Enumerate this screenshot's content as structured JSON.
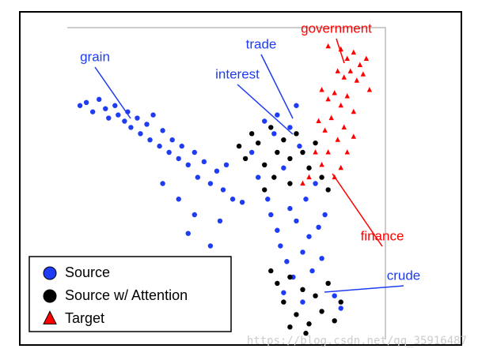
{
  "chart_data": {
    "type": "scatter",
    "xlim": [
      0,
      100
    ],
    "ylim": [
      0,
      100
    ],
    "series": [
      {
        "name": "Source",
        "color": "#1f3cf5",
        "marker": "circle",
        "x": [
          4,
          6,
          8,
          10,
          12,
          13,
          15,
          16,
          18,
          19,
          20,
          22,
          23,
          25,
          26,
          27,
          29,
          30,
          32,
          33,
          35,
          36,
          38,
          40,
          41,
          43,
          45,
          47,
          49,
          50,
          52,
          35,
          40,
          48,
          30,
          55,
          38,
          45,
          58,
          60,
          62,
          63,
          64,
          65,
          66,
          67,
          68,
          69,
          70,
          71,
          72,
          73,
          74,
          75,
          76,
          77,
          78,
          79,
          80,
          72,
          70,
          66,
          81,
          82,
          68,
          74,
          84,
          86
        ],
        "y": [
          75,
          76,
          73,
          77,
          74,
          71,
          75,
          72,
          70,
          73,
          68,
          71,
          66,
          69,
          64,
          72,
          62,
          67,
          60,
          64,
          58,
          62,
          56,
          60,
          52,
          57,
          50,
          54,
          48,
          56,
          45,
          45,
          40,
          38,
          50,
          44,
          34,
          30,
          60,
          52,
          70,
          45,
          40,
          66,
          35,
          30,
          55,
          25,
          42,
          20,
          38,
          62,
          28,
          45,
          33,
          22,
          50,
          36,
          26,
          75,
          68,
          72,
          40,
          18,
          15,
          12,
          14,
          10
        ]
      },
      {
        "name": "Source w/ Attention",
        "color": "#000000",
        "marker": "circle",
        "x": [
          54,
          56,
          58,
          60,
          62,
          64,
          66,
          68,
          70,
          72,
          74,
          76,
          78,
          80,
          82,
          65,
          70,
          62,
          64,
          66,
          68,
          70,
          72,
          74,
          76,
          78,
          80,
          82,
          84,
          86,
          75,
          70
        ],
        "y": [
          62,
          58,
          66,
          63,
          56,
          68,
          60,
          64,
          58,
          66,
          60,
          55,
          63,
          52,
          48,
          52,
          50,
          48,
          22,
          18,
          12,
          20,
          8,
          16,
          5,
          14,
          9,
          18,
          6,
          12,
          2,
          4
        ]
      },
      {
        "name": "Target",
        "color": "#ff0000",
        "marker": "triangle",
        "x": [
          82,
          86,
          88,
          90,
          92,
          94,
          85,
          87,
          89,
          91,
          93,
          95,
          80,
          82,
          84,
          86,
          88,
          90,
          79,
          81,
          83,
          85,
          87,
          78,
          80,
          82,
          84,
          86,
          76,
          74,
          88,
          90
        ],
        "y": [
          94,
          93,
          90,
          92,
          88,
          90,
          86,
          84,
          86,
          83,
          85,
          80,
          80,
          77,
          79,
          75,
          78,
          73,
          70,
          67,
          71,
          64,
          68,
          60,
          56,
          60,
          52,
          55,
          52,
          50,
          60,
          65
        ]
      }
    ],
    "annotations": [
      {
        "text": "grain",
        "color": "#1f3cf5"
      },
      {
        "text": "trade",
        "color": "#1f3cf5"
      },
      {
        "text": "interest",
        "color": "#1f3cf5"
      },
      {
        "text": "government",
        "color": "#ff0000"
      },
      {
        "text": "finance",
        "color": "#ff0000"
      },
      {
        "text": "crude",
        "color": "#1f3cf5"
      }
    ],
    "watermark": "https://blog.csdn.net/qq_35916487"
  }
}
